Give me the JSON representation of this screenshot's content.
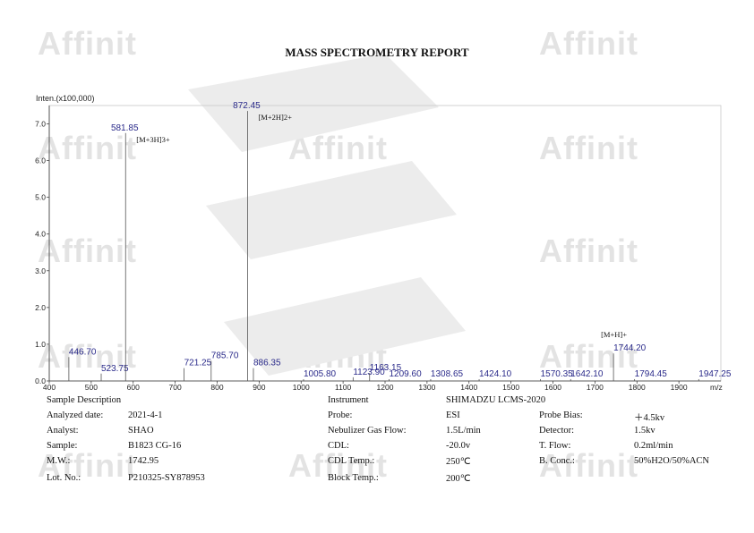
{
  "report": {
    "title": "MASS SPECTROMETRY REPORT",
    "watermark": "Affinit"
  },
  "chart_data": {
    "type": "bar",
    "ylabel": "Inten.(x100,000)",
    "xlabel": "m/z",
    "xlim": [
      400,
      2000
    ],
    "ylim": [
      0,
      7.5
    ],
    "xticks": [
      "400",
      "500",
      "600",
      "700",
      "800",
      "900",
      "1000",
      "1100",
      "1200",
      "1300",
      "1400",
      "1500",
      "1600",
      "1700",
      "1800",
      "1900"
    ],
    "yticks": [
      "0.0",
      "1.0",
      "2.0",
      "3.0",
      "4.0",
      "5.0",
      "6.0",
      "7.0"
    ],
    "peaks": [
      {
        "mz": 446.7,
        "label": "446.70",
        "intensity": 0.65
      },
      {
        "mz": 523.75,
        "label": "523.75",
        "intensity": 0.2
      },
      {
        "mz": 581.85,
        "label": "581.85",
        "intensity": 6.75,
        "annotation": "[M+3H]3+"
      },
      {
        "mz": 721.25,
        "label": "721.25",
        "intensity": 0.35
      },
      {
        "mz": 785.7,
        "label": "785.70",
        "intensity": 0.55
      },
      {
        "mz": 872.45,
        "label": "872.45",
        "intensity": 7.35,
        "annotation": "[M+2H]2+"
      },
      {
        "mz": 886.35,
        "label": "886.35",
        "intensity": 0.35
      },
      {
        "mz": 1005.8,
        "label": "1005.80",
        "intensity": 0.05
      },
      {
        "mz": 1123.9,
        "label": "1123.90",
        "intensity": 0.1
      },
      {
        "mz": 1163.15,
        "label": "1163.15",
        "intensity": 0.22
      },
      {
        "mz": 1209.6,
        "label": "1209.60",
        "intensity": 0.05
      },
      {
        "mz": 1308.65,
        "label": "1308.65",
        "intensity": 0.05
      },
      {
        "mz": 1424.1,
        "label": "1424.10",
        "intensity": 0.05
      },
      {
        "mz": 1570.35,
        "label": "1570.35",
        "intensity": 0.05
      },
      {
        "mz": 1642.1,
        "label": "1642.10",
        "intensity": 0.05
      },
      {
        "mz": 1744.2,
        "label": "1744.20",
        "intensity": 0.75,
        "annotation": "[M+H]+"
      },
      {
        "mz": 1794.45,
        "label": "1794.45",
        "intensity": 0.05
      },
      {
        "mz": 1947.25,
        "label": "1947.25",
        "intensity": 0.05
      }
    ]
  },
  "info": {
    "sample_description": "Sample Description",
    "instrument_label": "Instrument",
    "instrument_value": "SHIMADZU LCMS-2020",
    "rows": [
      {
        "l1": "Analyzed date:",
        "v1": "2021-4-1",
        "l2": "Probe:",
        "v2": "ESI",
        "l3": "Probe Bias:",
        "v3": "＋4.5kv"
      },
      {
        "l1": "Analyst:",
        "v1": "SHAO",
        "l2": "Nebulizer Gas Flow:",
        "v2": "1.5L/min",
        "l3": "Detector:",
        "v3": "1.5kv"
      },
      {
        "l1": "Sample:",
        "v1": "B1823 CG-16",
        "l2": "CDL:",
        "v2": "-20.0v",
        "l3": "T. Flow:",
        "v3": "0.2ml/min"
      },
      {
        "l1": "M.W.:",
        "v1": "1742.95",
        "l2": "CDL Temp.:",
        "v2": "250℃",
        "l3": "B. Conc.:",
        "v3": "50%H2O/50%ACN"
      },
      {
        "l1": "Lot. No.:",
        "v1": "P210325-SY878953",
        "l2": "Block Temp.:",
        "v2": "200℃",
        "l3": "",
        "v3": ""
      }
    ]
  }
}
